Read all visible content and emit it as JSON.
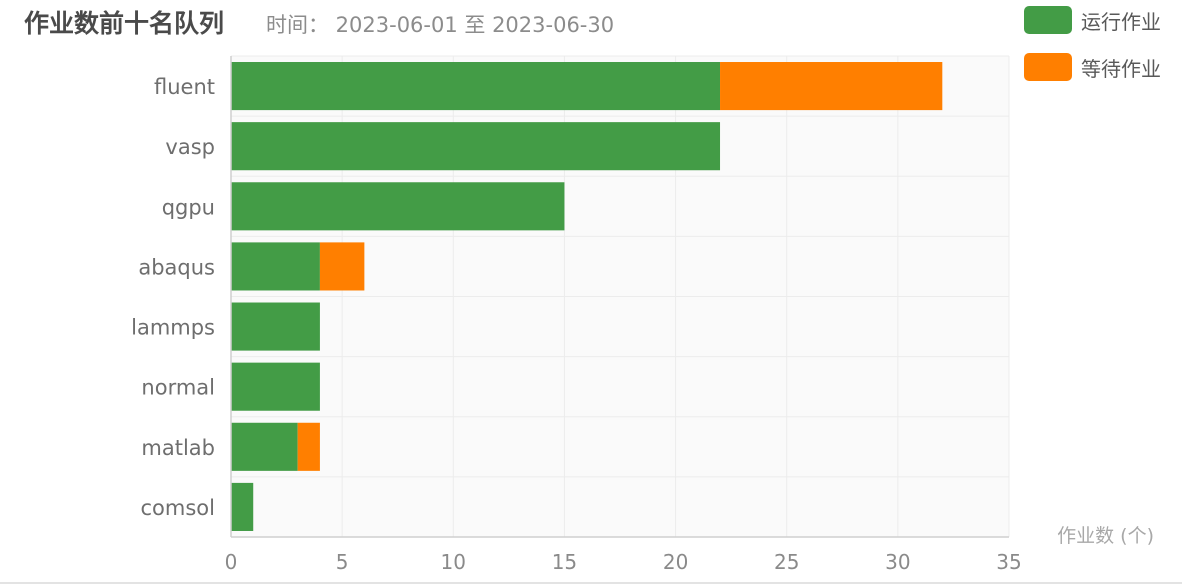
{
  "title": "作业数前十名队列",
  "subtitle": "时间： 2023-06-01 至 2023-06-30",
  "colors": {
    "running": "#439c46",
    "waiting": "#ff7f00",
    "axis_text": "#6e6e6e",
    "axis_unit_text": "#a8a8a8",
    "grid": "#ececec",
    "plot_band": "#fafafa"
  },
  "legend": [
    {
      "label": "运行作业",
      "color": "#439c46"
    },
    {
      "label": "等待作业",
      "color": "#ff7f00"
    }
  ],
  "chart_data": {
    "type": "bar",
    "orientation": "horizontal",
    "stacked": true,
    "categories": [
      "fluent",
      "vasp",
      "qgpu",
      "abaqus",
      "lammps",
      "normal",
      "matlab",
      "comsol"
    ],
    "series": [
      {
        "name": "运行作业",
        "values": [
          22,
          22,
          15,
          4,
          4,
          4,
          3,
          1
        ]
      },
      {
        "name": "等待作业",
        "values": [
          10,
          0,
          0,
          2,
          0,
          0,
          1,
          0
        ]
      }
    ],
    "x_ticks": [
      0,
      5,
      10,
      15,
      20,
      25,
      30,
      35
    ],
    "xlim": [
      0,
      35
    ],
    "xlabel": "作业数 (个)",
    "ylabel": "",
    "grid": true,
    "legend_position": "top-right"
  }
}
